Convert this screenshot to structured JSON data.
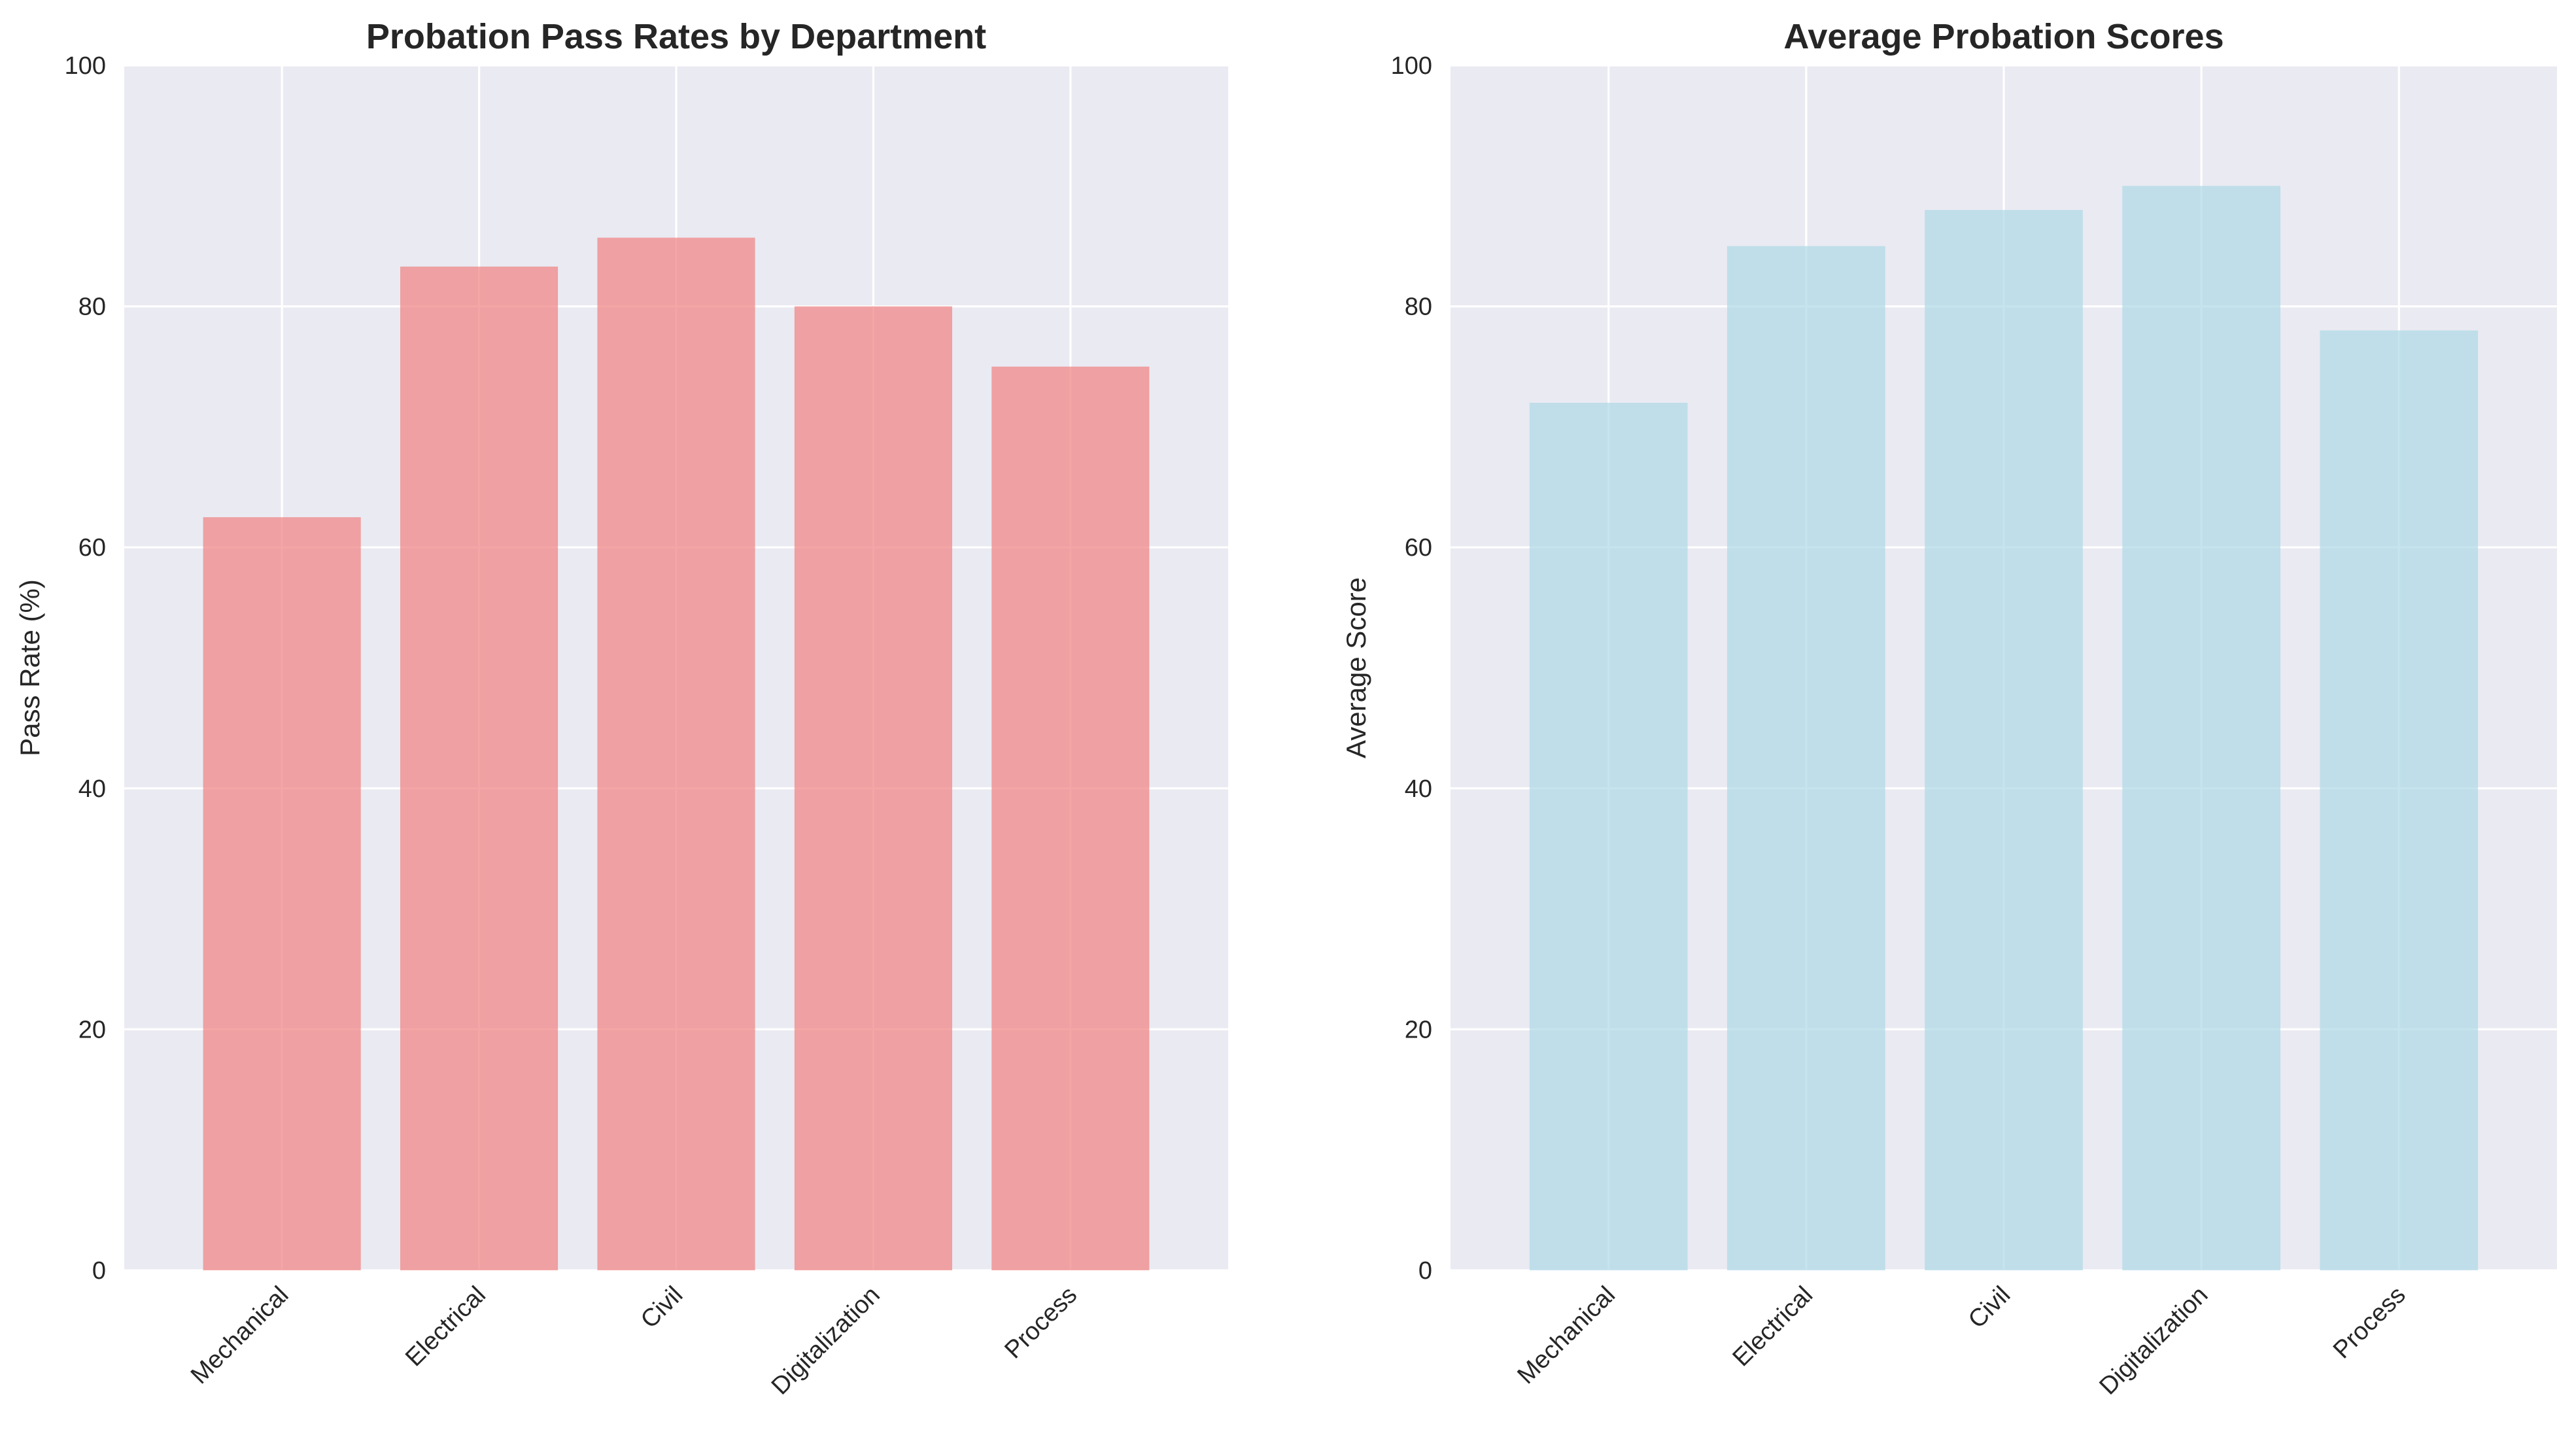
{
  "figure": {
    "background": "#ffffff",
    "plot_background": "#eaeaf2",
    "grid_color": "#ffffff"
  },
  "chart_data": [
    {
      "type": "bar",
      "title": "Probation Pass Rates by Department",
      "xlabel": "",
      "ylabel": "Pass Rate (%)",
      "categories": [
        "Mechanical",
        "Electrical",
        "Civil",
        "Digitalization",
        "Process"
      ],
      "values": [
        62.5,
        83.3,
        85.7,
        80.0,
        75.0
      ],
      "ylim": [
        0,
        100
      ],
      "yticks": [
        0,
        20,
        40,
        60,
        80,
        100
      ],
      "bar_color": "#f08080",
      "bar_alpha": 0.7,
      "grid": true,
      "tick_rotation": 45
    },
    {
      "type": "bar",
      "title": "Average Probation Scores",
      "xlabel": "",
      "ylabel": "Average Score",
      "categories": [
        "Mechanical",
        "Electrical",
        "Civil",
        "Digitalization",
        "Process"
      ],
      "values": [
        72,
        85,
        88,
        90,
        78
      ],
      "ylim": [
        0,
        100
      ],
      "yticks": [
        0,
        20,
        40,
        60,
        80,
        100
      ],
      "bar_color": "#add8e6",
      "bar_alpha": 0.7,
      "grid": true,
      "tick_rotation": 45
    }
  ]
}
